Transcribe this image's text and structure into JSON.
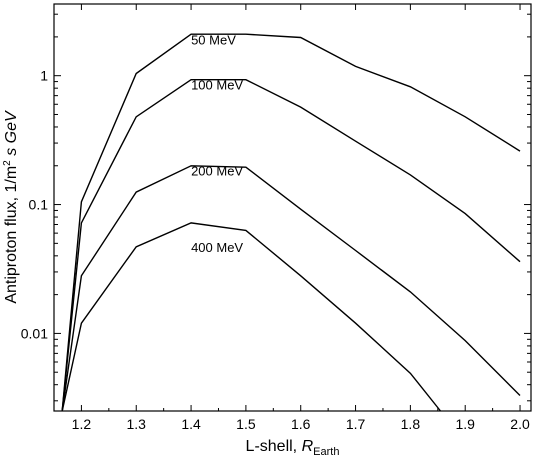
{
  "chart_data": {
    "type": "line",
    "x_axis": {
      "label_prefix": "L-shell, ",
      "label_var": "R",
      "label_sub": "Earth",
      "range": [
        1.15,
        2.02
      ],
      "ticks": [
        "1.2",
        "1.3",
        "1.4",
        "1.5",
        "1.6",
        "1.7",
        "1.8",
        "1.9",
        "2.0"
      ],
      "tick_values": [
        1.2,
        1.3,
        1.4,
        1.5,
        1.6,
        1.7,
        1.8,
        1.9,
        2.0
      ]
    },
    "y_axis": {
      "label_prefix": "Antiproton flux, 1/m",
      "label_sup": "2",
      "label_suffix": " s GeV",
      "scale": "log",
      "range": [
        0.0025,
        3.6
      ],
      "ticks": [
        "0.01",
        "0.1",
        "1"
      ],
      "tick_values": [
        0.01,
        0.1,
        1
      ]
    },
    "grid": false,
    "legend": "none",
    "series": [
      {
        "name": "50 MeV",
        "x": [
          1.165,
          1.2,
          1.3,
          1.4,
          1.5,
          1.6,
          1.7,
          1.8,
          1.9,
          2.0
        ],
        "y": [
          0.0025,
          0.105,
          1.04,
          2.1,
          2.1,
          1.98,
          1.18,
          0.82,
          0.48,
          0.26
        ]
      },
      {
        "name": "100 MeV",
        "x": [
          1.165,
          1.2,
          1.3,
          1.4,
          1.5,
          1.6,
          1.7,
          1.8,
          1.9,
          2.0
        ],
        "y": [
          0.0025,
          0.072,
          0.48,
          0.93,
          0.93,
          0.57,
          0.31,
          0.17,
          0.085,
          0.036
        ]
      },
      {
        "name": "200 MeV",
        "x": [
          1.165,
          1.2,
          1.3,
          1.4,
          1.5,
          1.6,
          1.7,
          1.8,
          1.9,
          2.0
        ],
        "y": [
          0.0025,
          0.028,
          0.125,
          0.2,
          0.195,
          0.092,
          0.044,
          0.021,
          0.0088,
          0.0033
        ]
      },
      {
        "name": "400 MeV",
        "x": [
          1.165,
          1.2,
          1.3,
          1.4,
          1.5,
          1.6,
          1.7,
          1.8,
          1.855
        ],
        "y": [
          0.0025,
          0.012,
          0.047,
          0.072,
          0.063,
          0.028,
          0.012,
          0.0049,
          0.0025
        ]
      }
    ],
    "annotations": [
      {
        "text": "50 MeV",
        "x": 1.4,
        "y": 1.75
      },
      {
        "text": "100 MeV",
        "x": 1.4,
        "y": 0.78
      },
      {
        "text": "200 MeV",
        "x": 1.4,
        "y": 0.168
      },
      {
        "text": "400 MeV",
        "x": 1.4,
        "y": 0.043
      }
    ]
  }
}
